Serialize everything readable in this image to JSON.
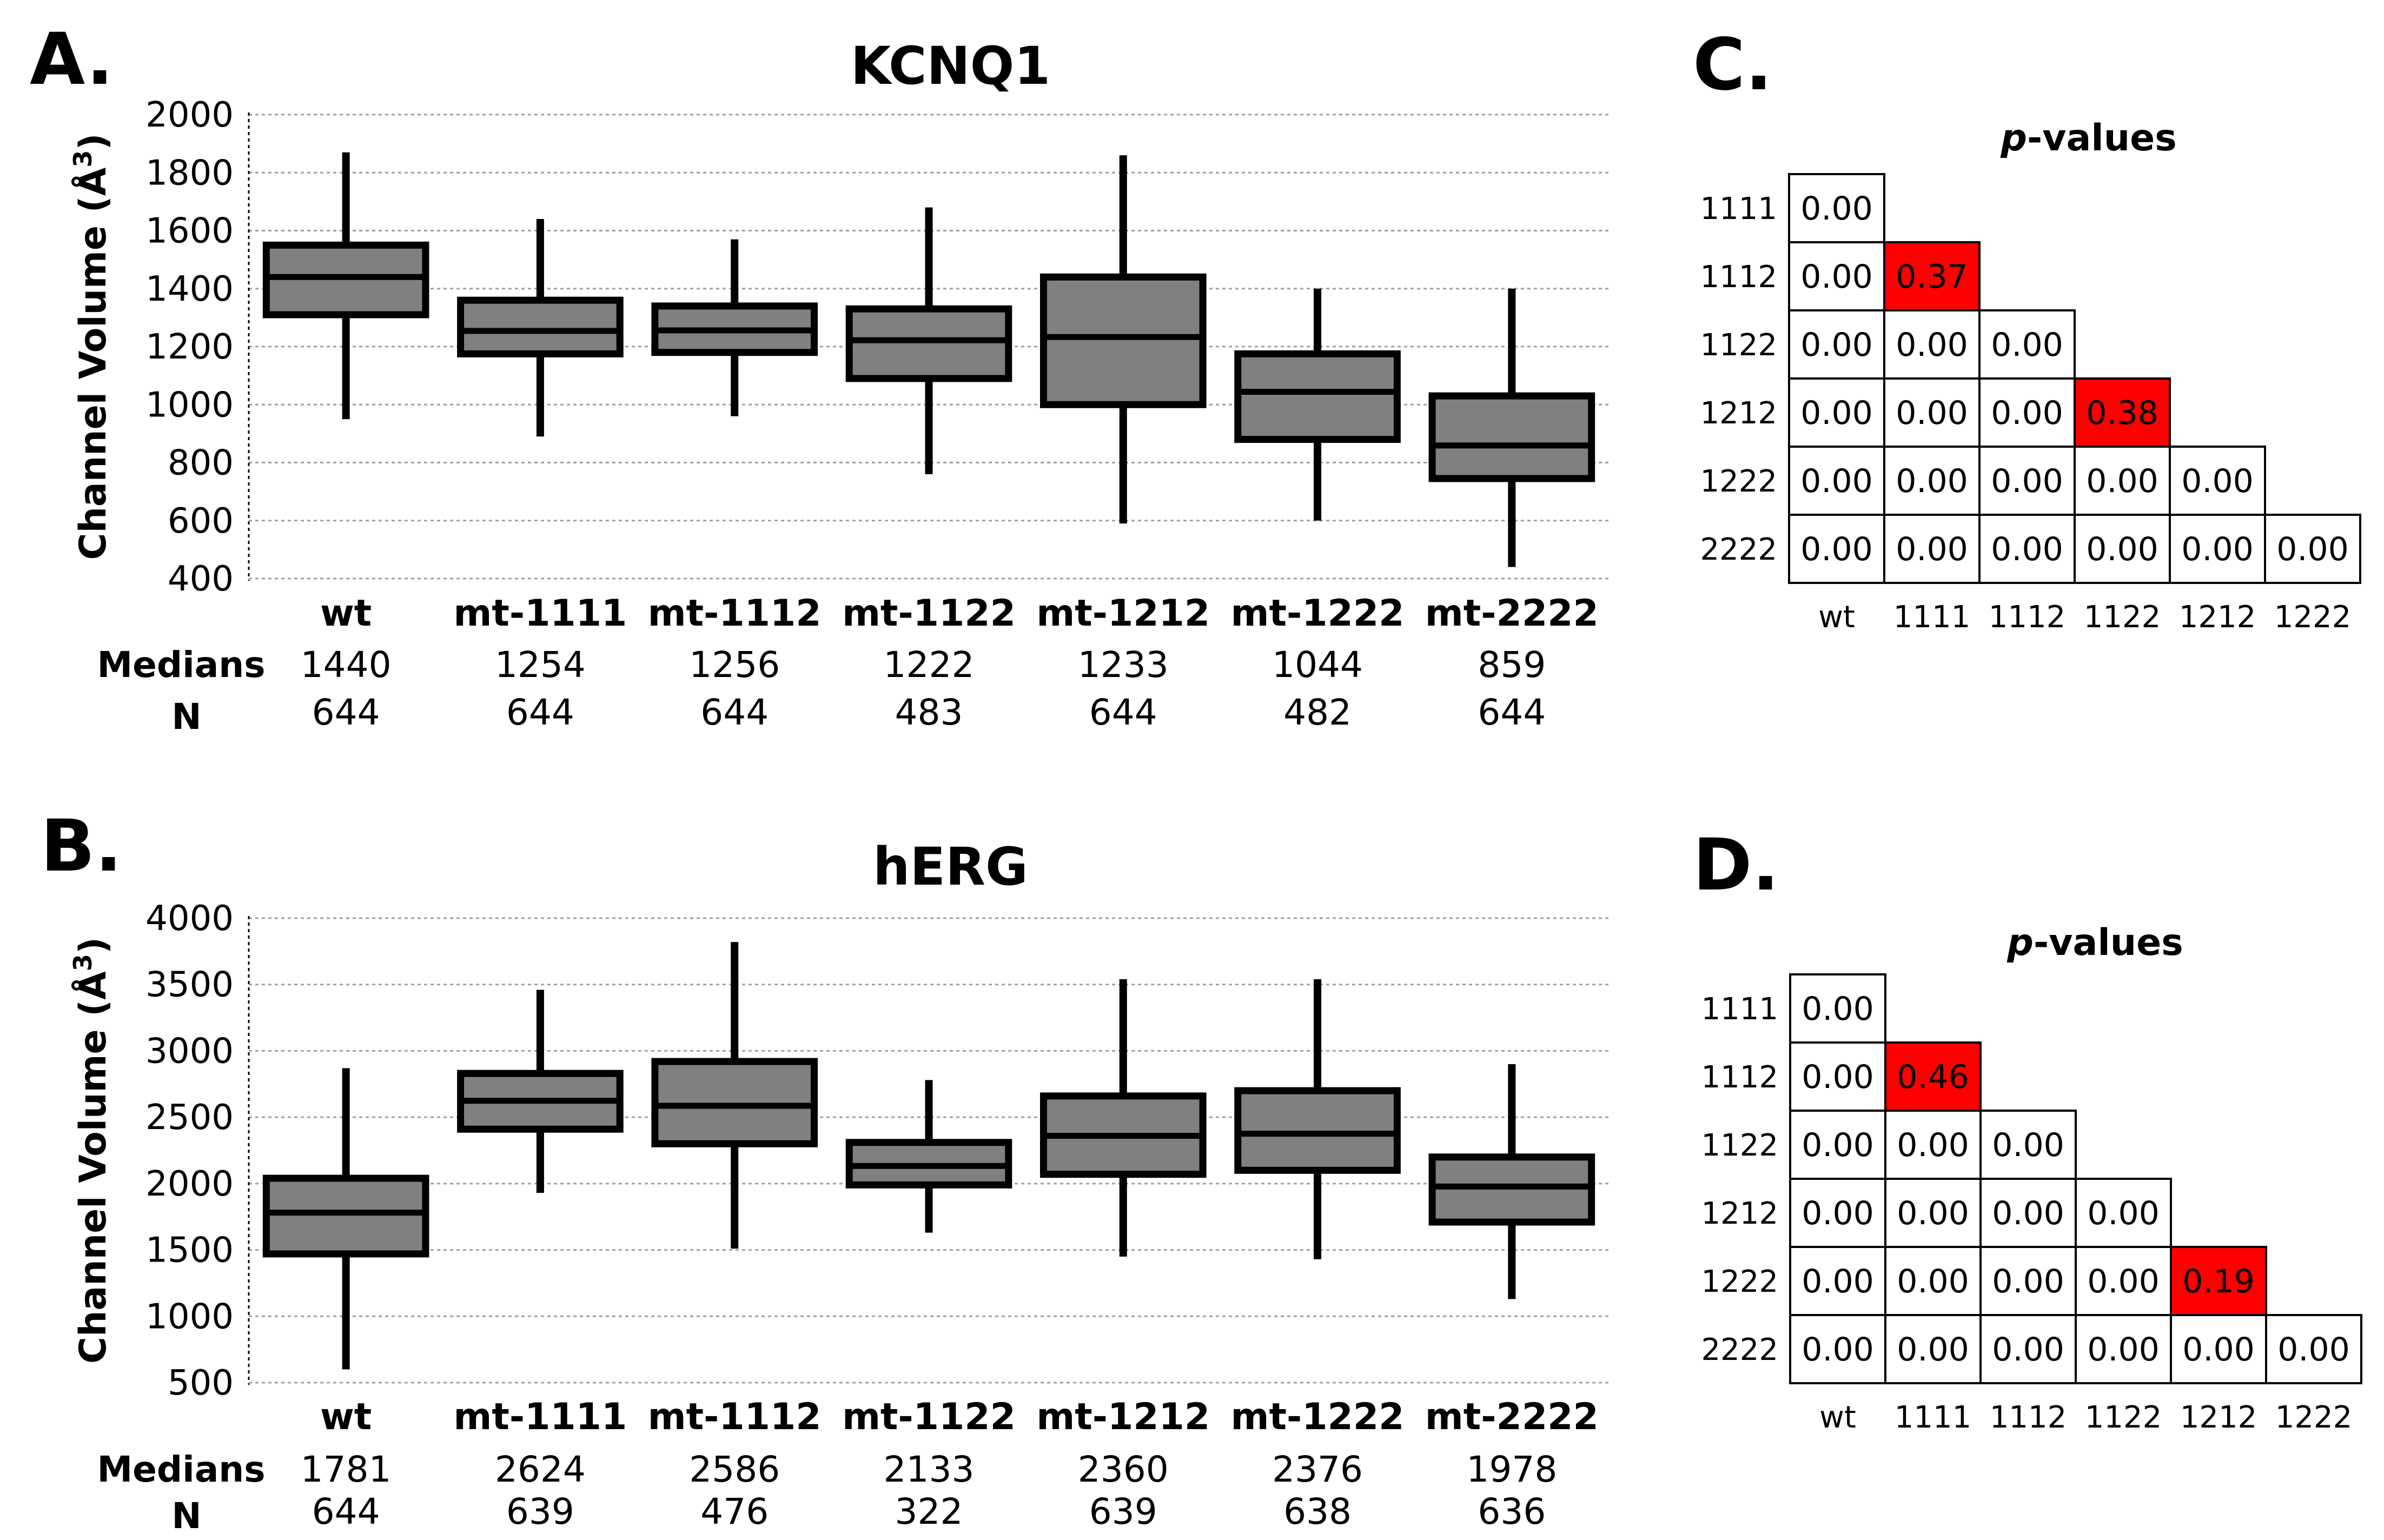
{
  "panels": {
    "A": {
      "letter": "A."
    },
    "B": {
      "letter": "B."
    },
    "C": {
      "letter": "C."
    },
    "D": {
      "letter": "D."
    }
  },
  "colors": {
    "box_fill": "#808080",
    "box_stroke": "#000000",
    "grid": "#a0a0a0",
    "highlight": "#ff0000",
    "cell_fill": "#ffffff"
  },
  "chart_data": [
    {
      "id": "A",
      "type": "box",
      "title": "KCNQ1",
      "ylabel": "Channel Volume (Å³)",
      "ylabel_base": "Channel Volume (Å",
      "ylabel_sup": "3",
      "ylabel_close": ")",
      "ylim": [
        400,
        2000
      ],
      "yticks": [
        "400",
        "600",
        "800",
        "1000",
        "1200",
        "1400",
        "1600",
        "1800",
        "2000"
      ],
      "ytick_values": [
        400,
        600,
        800,
        1000,
        1200,
        1400,
        1600,
        1800,
        2000
      ],
      "grid": "horizontal dotted",
      "categories": [
        "wt",
        "mt-1111",
        "mt-1112",
        "mt-1122",
        "mt-1212",
        "mt-1222",
        "mt-2222"
      ],
      "boxes": [
        {
          "whisker_low": 950,
          "q1": 1310,
          "median": 1440,
          "q3": 1550,
          "whisker_high": 1870
        },
        {
          "whisker_low": 890,
          "q1": 1175,
          "median": 1254,
          "q3": 1360,
          "whisker_high": 1640
        },
        {
          "whisker_low": 960,
          "q1": 1180,
          "median": 1256,
          "q3": 1340,
          "whisker_high": 1570
        },
        {
          "whisker_low": 760,
          "q1": 1090,
          "median": 1222,
          "q3": 1330,
          "whisker_high": 1680
        },
        {
          "whisker_low": 590,
          "q1": 1000,
          "median": 1233,
          "q3": 1440,
          "whisker_high": 1860
        },
        {
          "whisker_low": 600,
          "q1": 880,
          "median": 1044,
          "q3": 1175,
          "whisker_high": 1400
        },
        {
          "whisker_low": 440,
          "q1": 745,
          "median": 859,
          "q3": 1030,
          "whisker_high": 1400
        }
      ],
      "row_labels": [
        "Medians",
        "N"
      ],
      "medians": [
        "1440",
        "1254",
        "1256",
        "1222",
        "1233",
        "1044",
        "859"
      ],
      "n": [
        "644",
        "644",
        "644",
        "483",
        "644",
        "482",
        "644"
      ]
    },
    {
      "id": "B",
      "type": "box",
      "title": "hERG",
      "ylabel": "Channel Volume (Å³)",
      "ylabel_base": "Channel Volume (Å",
      "ylabel_sup": "3",
      "ylabel_close": ")",
      "ylim": [
        500,
        4000
      ],
      "yticks": [
        "500",
        "1000",
        "1500",
        "2000",
        "2500",
        "3000",
        "3500",
        "4000"
      ],
      "ytick_values": [
        500,
        1000,
        1500,
        2000,
        2500,
        3000,
        3500,
        4000
      ],
      "grid": "horizontal dotted",
      "categories": [
        "wt",
        "mt-1111",
        "mt-1112",
        "mt-1122",
        "mt-1212",
        "mt-1222",
        "mt-2222"
      ],
      "boxes": [
        {
          "whisker_low": 600,
          "q1": 1470,
          "median": 1781,
          "q3": 2040,
          "whisker_high": 2870
        },
        {
          "whisker_low": 1930,
          "q1": 2410,
          "median": 2624,
          "q3": 2830,
          "whisker_high": 3460
        },
        {
          "whisker_low": 1510,
          "q1": 2300,
          "median": 2586,
          "q3": 2920,
          "whisker_high": 3820
        },
        {
          "whisker_low": 1630,
          "q1": 1990,
          "median": 2133,
          "q3": 2310,
          "whisker_high": 2780
        },
        {
          "whisker_low": 1450,
          "q1": 2070,
          "median": 2360,
          "q3": 2660,
          "whisker_high": 3540
        },
        {
          "whisker_low": 1430,
          "q1": 2100,
          "median": 2376,
          "q3": 2700,
          "whisker_high": 3540
        },
        {
          "whisker_low": 1130,
          "q1": 1710,
          "median": 1978,
          "q3": 2200,
          "whisker_high": 2900
        }
      ],
      "row_labels": [
        "Medians",
        "N"
      ],
      "medians": [
        "1781",
        "2624",
        "2586",
        "2133",
        "2360",
        "2376",
        "1978"
      ],
      "n": [
        "644",
        "639",
        "476",
        "322",
        "639",
        "638",
        "636"
      ]
    },
    {
      "id": "C",
      "type": "table",
      "title": "p-values",
      "title_italic": "p",
      "title_rest": "-values",
      "row_labels": [
        "1111",
        "1112",
        "1122",
        "1212",
        "1222",
        "2222"
      ],
      "col_labels": [
        "wt",
        "1111",
        "1112",
        "1122",
        "1212",
        "1222"
      ],
      "cells": [
        [
          "0.00"
        ],
        [
          "0.00",
          "0.37"
        ],
        [
          "0.00",
          "0.00",
          "0.00"
        ],
        [
          "0.00",
          "0.00",
          "0.00",
          "0.38"
        ],
        [
          "0.00",
          "0.00",
          "0.00",
          "0.00",
          "0.00"
        ],
        [
          "0.00",
          "0.00",
          "0.00",
          "0.00",
          "0.00",
          "0.00"
        ]
      ],
      "highlighted": [
        [
          1,
          1
        ],
        [
          3,
          3
        ]
      ]
    },
    {
      "id": "D",
      "type": "table",
      "title": "p-values",
      "title_italic": "p",
      "title_rest": "-values",
      "row_labels": [
        "1111",
        "1112",
        "1122",
        "1212",
        "1222",
        "2222"
      ],
      "col_labels": [
        "wt",
        "1111",
        "1112",
        "1122",
        "1212",
        "1222"
      ],
      "cells": [
        [
          "0.00"
        ],
        [
          "0.00",
          "0.46"
        ],
        [
          "0.00",
          "0.00",
          "0.00"
        ],
        [
          "0.00",
          "0.00",
          "0.00",
          "0.00"
        ],
        [
          "0.00",
          "0.00",
          "0.00",
          "0.00",
          "0.19"
        ],
        [
          "0.00",
          "0.00",
          "0.00",
          "0.00",
          "0.00",
          "0.00"
        ]
      ],
      "highlighted": [
        [
          1,
          1
        ],
        [
          4,
          4
        ]
      ]
    }
  ]
}
